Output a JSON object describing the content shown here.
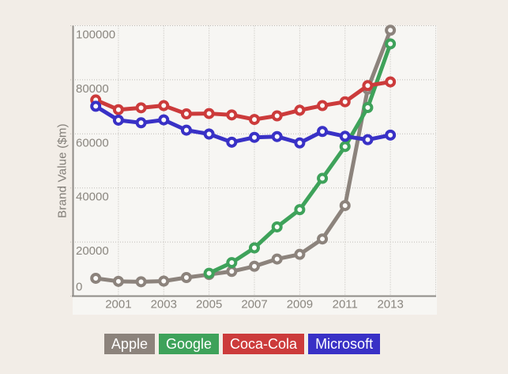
{
  "page": {
    "background_color": "#f2ede7",
    "plot_background_color": "#f7f6f3",
    "grid_color": "#bfbcb7",
    "axis_line_color": "#8f8c87",
    "tick_label_color": "#8a867f",
    "axis_title_color": "#817d77"
  },
  "chart_data": {
    "type": "line",
    "title": "",
    "xlabel": "",
    "ylabel": "Brand Value ($m)",
    "xlim": [
      1999,
      2015
    ],
    "ylim": [
      0,
      100000
    ],
    "x_ticks": [
      2001,
      2003,
      2005,
      2007,
      2009,
      2011,
      2013
    ],
    "y_ticks": [
      0,
      20000,
      40000,
      60000,
      80000,
      100000
    ],
    "grid": true,
    "grid_style": "dotted",
    "marker": "circle-white-filled",
    "legend_position": "bottom",
    "series": [
      {
        "name": "Apple",
        "color": "#8c837c",
        "x": [
          2000,
          2001,
          2002,
          2003,
          2004,
          2005,
          2006,
          2007,
          2008,
          2009,
          2010,
          2011,
          2012,
          2013
        ],
        "values": [
          6594,
          5464,
          5316,
          5554,
          6871,
          7985,
          9130,
          11037,
          13724,
          15443,
          21143,
          33492,
          76568,
          98316
        ]
      },
      {
        "name": "Google",
        "color": "#3ea25a",
        "x": [
          2005,
          2006,
          2007,
          2008,
          2009,
          2010,
          2011,
          2012,
          2013
        ],
        "values": [
          8461,
          12376,
          17837,
          25590,
          31980,
          43557,
          55317,
          69726,
          93291
        ]
      },
      {
        "name": "Coca-Cola",
        "color": "#cc3b3b",
        "x": [
          2000,
          2001,
          2002,
          2003,
          2004,
          2005,
          2006,
          2007,
          2008,
          2009,
          2010,
          2011,
          2012,
          2013
        ],
        "values": [
          72537,
          68945,
          69637,
          70453,
          67394,
          67525,
          67000,
          65324,
          66667,
          68734,
          70452,
          71861,
          77839,
          79213
        ]
      },
      {
        "name": "Microsoft",
        "color": "#3931c6",
        "x": [
          2000,
          2001,
          2002,
          2003,
          2004,
          2005,
          2006,
          2007,
          2008,
          2009,
          2010,
          2011,
          2012,
          2013
        ],
        "values": [
          70197,
          65068,
          64091,
          65174,
          61372,
          59941,
          56926,
          58709,
          59007,
          56647,
          60895,
          59087,
          57853,
          59546
        ]
      }
    ]
  },
  "legend": {
    "items": [
      {
        "label": "Apple",
        "color": "#8c837c"
      },
      {
        "label": "Google",
        "color": "#3ea25a"
      },
      {
        "label": "Coca-Cola",
        "color": "#cc3b3b"
      },
      {
        "label": "Microsoft",
        "color": "#3931c6"
      }
    ]
  }
}
